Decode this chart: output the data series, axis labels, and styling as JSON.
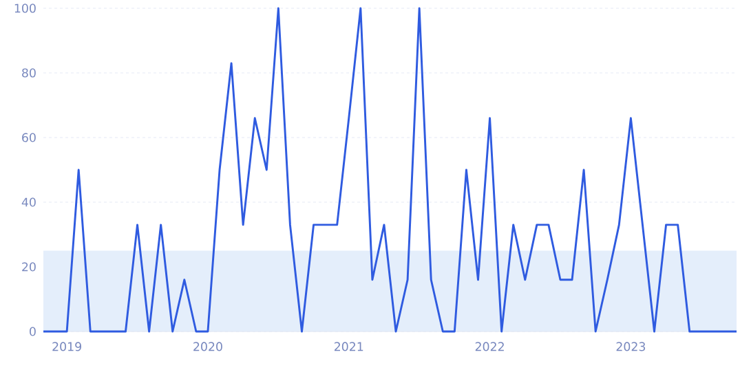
{
  "chart_data": {
    "type": "line",
    "x": [
      "2018-11",
      "2018-12",
      "2019-01",
      "2019-02",
      "2019-03",
      "2019-04",
      "2019-05",
      "2019-06",
      "2019-07",
      "2019-08",
      "2019-09",
      "2019-10",
      "2019-11",
      "2019-12",
      "2020-01",
      "2020-02",
      "2020-03",
      "2020-04",
      "2020-05",
      "2020-06",
      "2020-07",
      "2020-08",
      "2020-09",
      "2020-10",
      "2020-11",
      "2020-12",
      "2021-01",
      "2021-02",
      "2021-03",
      "2021-04",
      "2021-05",
      "2021-06",
      "2021-07",
      "2021-08",
      "2021-09",
      "2021-10",
      "2021-11",
      "2021-12",
      "2022-01",
      "2022-02",
      "2022-03",
      "2022-04",
      "2022-05",
      "2022-06",
      "2022-07",
      "2022-08",
      "2022-09",
      "2022-10",
      "2022-11",
      "2022-12",
      "2023-01",
      "2023-02",
      "2023-03",
      "2023-04",
      "2023-05",
      "2023-06",
      "2023-07",
      "2023-08",
      "2023-09",
      "2023-10"
    ],
    "series": [
      {
        "color": "#2f5be0",
        "values": [
          0,
          0,
          0,
          50,
          0,
          0,
          0,
          0,
          33,
          0,
          33,
          0,
          16,
          0,
          0,
          50,
          83,
          33,
          66,
          50,
          100,
          33,
          0,
          33,
          33,
          33,
          66,
          100,
          16,
          33,
          0,
          16,
          100,
          16,
          0,
          0,
          50,
          16,
          66,
          0,
          33,
          16,
          33,
          33,
          16,
          16,
          50,
          0,
          16,
          33,
          66,
          33,
          0,
          33,
          33,
          0,
          0,
          0,
          0,
          0
        ]
      }
    ],
    "xlim": [
      "2018-11",
      "2023-10"
    ],
    "xticks": [
      "2019",
      "2020",
      "2021",
      "2022",
      "2023"
    ],
    "ylim": [
      0,
      100
    ],
    "yticks": [
      0,
      20,
      40,
      60,
      80,
      100
    ],
    "grid": "y",
    "bands": [
      {
        "axis": "y",
        "from": 0,
        "to": 25,
        "color": "#e4eefb"
      }
    ]
  }
}
